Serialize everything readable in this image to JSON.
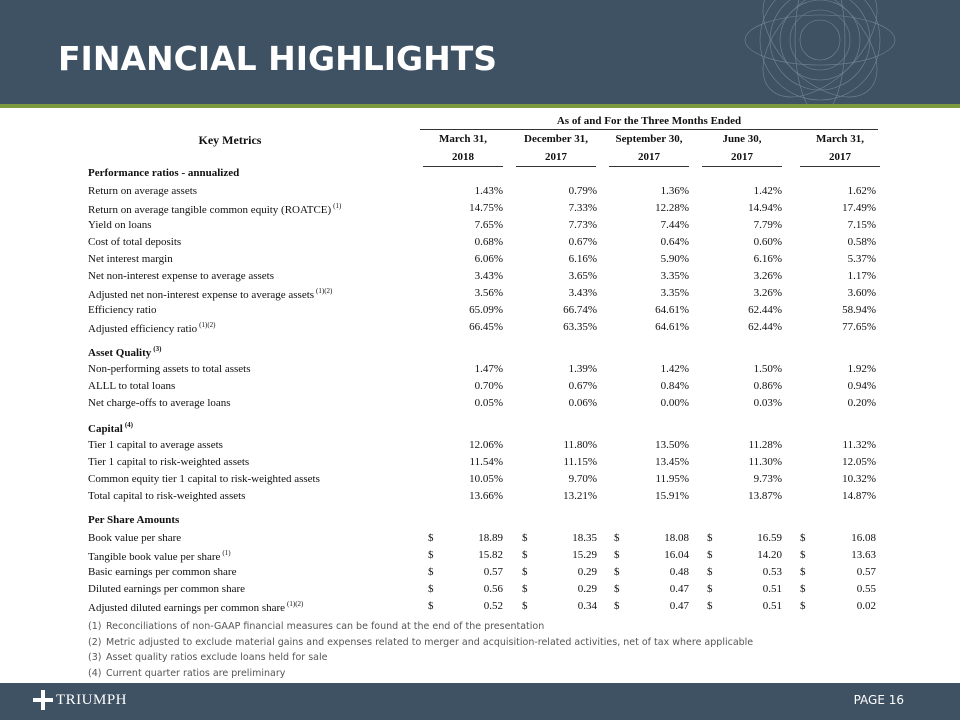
{
  "header": {
    "title": "FINANCIAL HIGHLIGHTS"
  },
  "table": {
    "group_header": "As of and For the Three Months Ended",
    "key_header": "Key Metrics",
    "columns": [
      [
        "March 31,",
        "2018"
      ],
      [
        "December 31,",
        "2017"
      ],
      [
        "September 30,",
        "2017"
      ],
      [
        "June 30,",
        "2017"
      ],
      [
        "March 31,",
        "2017"
      ]
    ],
    "sections": [
      {
        "title": "Performance ratios - annualized",
        "rows": [
          {
            "label": "Return on average assets",
            "values": [
              "1.43%",
              "0.79%",
              "1.36%",
              "1.42%",
              "1.62%"
            ]
          },
          {
            "label": "Return on average tangible common equity (ROATCE)",
            "note": "(1)",
            "values": [
              "14.75%",
              "7.33%",
              "12.28%",
              "14.94%",
              "17.49%"
            ]
          },
          {
            "label": "Yield on loans",
            "values": [
              "7.65%",
              "7.73%",
              "7.44%",
              "7.79%",
              "7.15%"
            ]
          },
          {
            "label": "Cost of total deposits",
            "values": [
              "0.68%",
              "0.67%",
              "0.64%",
              "0.60%",
              "0.58%"
            ]
          },
          {
            "label": "Net interest margin",
            "values": [
              "6.06%",
              "6.16%",
              "5.90%",
              "6.16%",
              "5.37%"
            ]
          },
          {
            "label": "Net non-interest expense to average assets",
            "values": [
              "3.43%",
              "3.65%",
              "3.35%",
              "3.26%",
              "1.17%"
            ]
          },
          {
            "label": "Adjusted net non-interest expense to average assets",
            "note": "(1)(2)",
            "values": [
              "3.56%",
              "3.43%",
              "3.35%",
              "3.26%",
              "3.60%"
            ]
          },
          {
            "label": "Efficiency ratio",
            "values": [
              "65.09%",
              "66.74%",
              "64.61%",
              "62.44%",
              "58.94%"
            ]
          },
          {
            "label": "Adjusted efficiency ratio",
            "note": "(1)(2)",
            "values": [
              "66.45%",
              "63.35%",
              "64.61%",
              "62.44%",
              "77.65%"
            ]
          }
        ]
      },
      {
        "title": "Asset Quality",
        "note": "(3)",
        "rows": [
          {
            "label": "Non-performing assets to total assets",
            "values": [
              "1.47%",
              "1.39%",
              "1.42%",
              "1.50%",
              "1.92%"
            ]
          },
          {
            "label": "ALLL to total loans",
            "values": [
              "0.70%",
              "0.67%",
              "0.84%",
              "0.86%",
              "0.94%"
            ]
          },
          {
            "label": "Net charge-offs to average loans",
            "values": [
              "0.05%",
              "0.06%",
              "0.00%",
              "0.03%",
              "0.20%"
            ]
          }
        ]
      },
      {
        "title": "Capital",
        "note": "(4)",
        "rows": [
          {
            "label": "Tier 1 capital to average assets",
            "values": [
              "12.06%",
              "11.80%",
              "13.50%",
              "11.28%",
              "11.32%"
            ]
          },
          {
            "label": "Tier 1 capital to risk-weighted assets",
            "values": [
              "11.54%",
              "11.15%",
              "13.45%",
              "11.30%",
              "12.05%"
            ]
          },
          {
            "label": "Common equity tier 1 capital to risk-weighted assets",
            "values": [
              "10.05%",
              "9.70%",
              "11.95%",
              "9.73%",
              "10.32%"
            ]
          },
          {
            "label": "Total capital to risk-weighted assets",
            "values": [
              "13.66%",
              "13.21%",
              "15.91%",
              "13.87%",
              "14.87%"
            ]
          }
        ]
      },
      {
        "title": "Per Share Amounts",
        "currency": "$",
        "rows": [
          {
            "label": "Book value per share",
            "values": [
              "18.89",
              "18.35",
              "18.08",
              "16.59",
              "16.08"
            ]
          },
          {
            "label": "Tangible book value per share",
            "note": "(1)",
            "values": [
              "15.82",
              "15.29",
              "16.04",
              "14.20",
              "13.63"
            ]
          },
          {
            "label": "Basic earnings per common share",
            "values": [
              "0.57",
              "0.29",
              "0.48",
              "0.53",
              "0.57"
            ]
          },
          {
            "label": "Diluted earnings per common share",
            "values": [
              "0.56",
              "0.29",
              "0.47",
              "0.51",
              "0.55"
            ]
          },
          {
            "label": "Adjusted diluted earnings per common share",
            "note": "(1)(2)",
            "values": [
              "0.52",
              "0.34",
              "0.47",
              "0.51",
              "0.02"
            ]
          }
        ]
      }
    ]
  },
  "footnotes": [
    [
      "(1)",
      "Reconciliations of non-GAAP financial measures can be found at the end of the presentation"
    ],
    [
      "(2)",
      "Metric adjusted to exclude material gains and expenses related to merger and acquisition-related activities, net of tax where applicable"
    ],
    [
      "(3)",
      "Asset quality ratios exclude loans held for sale"
    ],
    [
      "(4)",
      "Current quarter ratios are preliminary"
    ]
  ],
  "footer": {
    "brand": "TRIUMPH",
    "page": "PAGE 16"
  }
}
